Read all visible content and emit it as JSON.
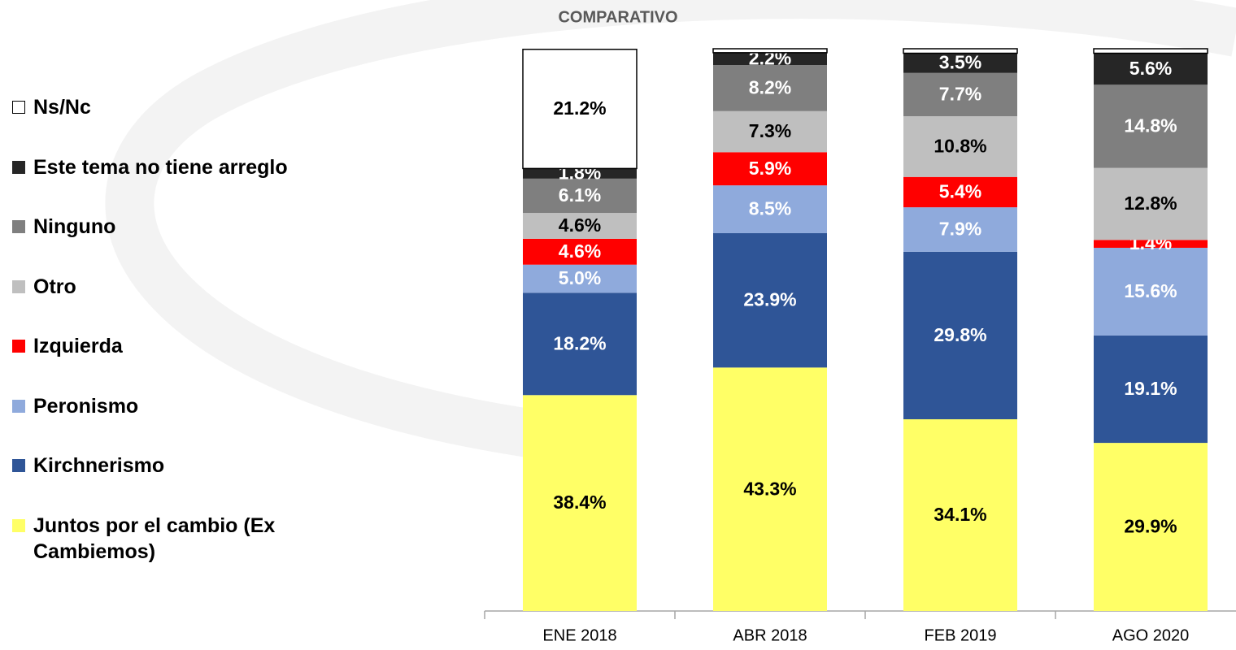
{
  "chart_data": {
    "type": "stacked_bar",
    "title": "COMPARATIVO",
    "categories": [
      "ENE 2018",
      "ABR 2018",
      "FEB 2019",
      "AGO 2020"
    ],
    "ylim": [
      0,
      100
    ],
    "series": [
      {
        "name": "Juntos por el cambio (Ex Cambiemos)",
        "color": "#ffff66",
        "label_color": "#000000",
        "values": [
          38.4,
          43.3,
          34.1,
          29.9
        ],
        "value_labels": [
          "38.4%",
          "43.3%",
          "34.1%",
          "29.9%"
        ]
      },
      {
        "name": "Kirchnerismo",
        "color": "#2f5597",
        "label_color": "#ffffff",
        "values": [
          18.2,
          23.9,
          29.8,
          19.1
        ],
        "value_labels": [
          "18.2%",
          "23.9%",
          "29.8%",
          "19.1%"
        ]
      },
      {
        "name": "Peronismo",
        "color": "#8faadc",
        "label_color": "#ffffff",
        "values": [
          5.0,
          8.5,
          7.9,
          15.6
        ],
        "value_labels": [
          "5.0%",
          "8.5%",
          "7.9%",
          "15.6%"
        ]
      },
      {
        "name": "Izquierda",
        "color": "#ff0000",
        "label_color": "#ffffff",
        "values": [
          4.6,
          5.9,
          5.4,
          1.4
        ],
        "value_labels": [
          "4.6%",
          "5.9%",
          "5.4%",
          "1.4%"
        ]
      },
      {
        "name": "Otro",
        "color": "#bfbfbf",
        "label_color": "#000000",
        "values": [
          4.6,
          7.3,
          10.8,
          12.8
        ],
        "value_labels": [
          "4.6%",
          "7.3%",
          "10.8%",
          "12.8%"
        ]
      },
      {
        "name": "Ninguno",
        "color": "#7f7f7f",
        "label_color": "#ffffff",
        "values": [
          6.1,
          8.2,
          7.7,
          14.8
        ],
        "value_labels": [
          "6.1%",
          "8.2%",
          "7.7%",
          "14.8%"
        ]
      },
      {
        "name": "Este tema no tiene arreglo",
        "color": "#262626",
        "label_color": "#ffffff",
        "values": [
          1.8,
          2.2,
          3.5,
          5.6
        ],
        "value_labels": [
          "1.8%",
          "2.2%",
          "3.5%",
          "5.6%"
        ]
      },
      {
        "name": "Ns/Nc",
        "color": "#ffffff",
        "label_color": "#000000",
        "values": [
          21.2,
          0.7,
          0.8,
          0.8
        ],
        "value_labels": [
          "21.2%",
          null,
          null,
          null
        ]
      }
    ]
  }
}
